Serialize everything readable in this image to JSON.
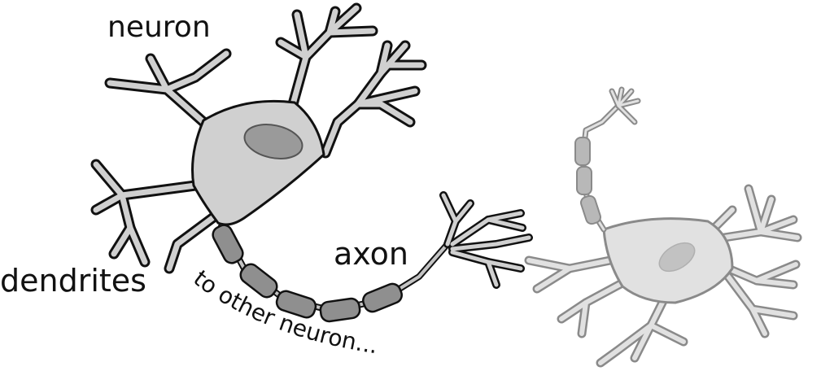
{
  "diagram": {
    "labels": {
      "neuron": "neuron",
      "axon": "axon",
      "dendrites": "dendrites",
      "caption": "to other neuron..."
    },
    "colors": {
      "outline": "#111111",
      "cell_fill": "#d0d0d0",
      "nucleus_fill": "#9a9a9a",
      "myelin_fill": "#8f8f8f",
      "faded_outline": "#8a8a8a",
      "faded_fill": "#e1e1e1"
    }
  }
}
